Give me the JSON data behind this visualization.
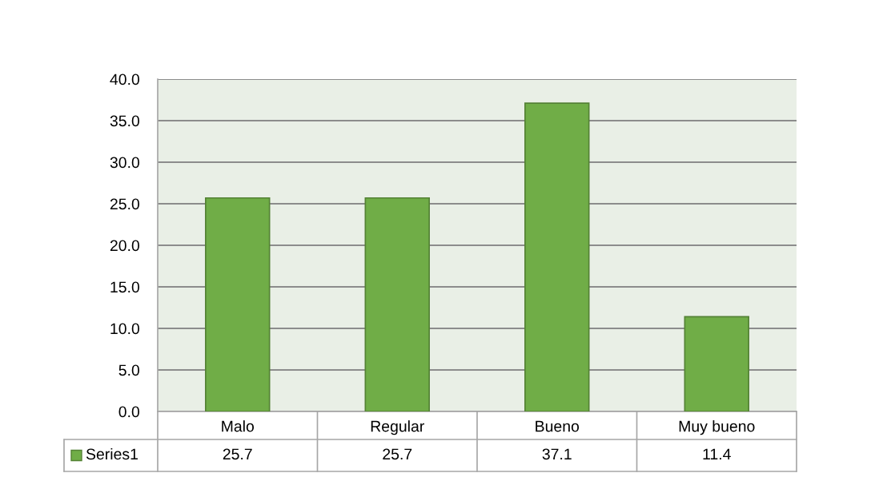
{
  "chart_data": {
    "type": "bar",
    "categories": [
      "Malo",
      "Regular",
      "Bueno",
      "Muy bueno"
    ],
    "series": [
      {
        "name": "Series1",
        "color": "#70ad47",
        "values": [
          25.7,
          25.7,
          37.1,
          11.4
        ]
      }
    ],
    "ylim": [
      0,
      40
    ],
    "yticks": [
      {
        "value": 0,
        "label": "0.0"
      },
      {
        "value": 5,
        "label": "5.0"
      },
      {
        "value": 10,
        "label": "10.0"
      },
      {
        "value": 15,
        "label": "15.0"
      },
      {
        "value": 20,
        "label": "20.0"
      },
      {
        "value": 25,
        "label": "25.0"
      },
      {
        "value": 30,
        "label": "30.0"
      },
      {
        "value": 35,
        "label": "35.0"
      },
      {
        "value": 40,
        "label": "40.0"
      }
    ],
    "grid": "y",
    "legend": "bottom",
    "data_labels": true
  }
}
